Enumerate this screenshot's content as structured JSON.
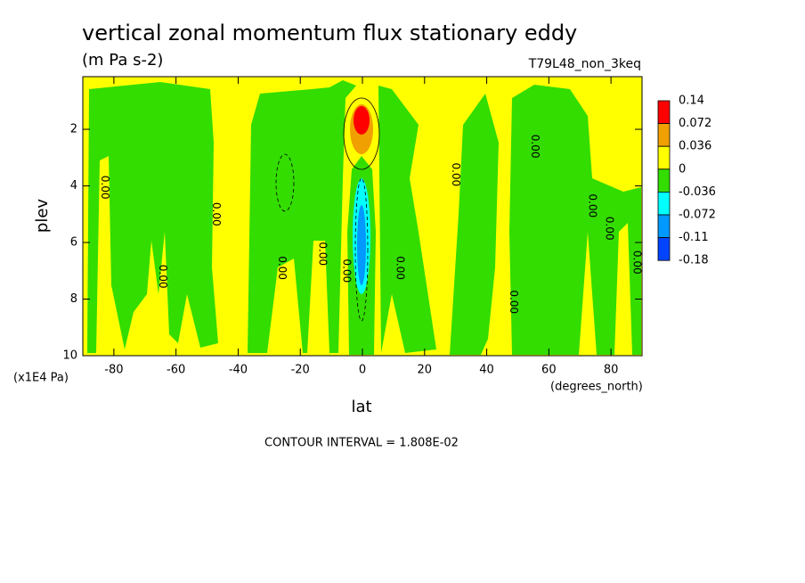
{
  "chart_data": {
    "type": "contour",
    "title": "vertical zonal momentum flux stationary eddy",
    "subtitle": "(m Pa s-2)",
    "annotation": "T79L48_non_3keq",
    "xlabel": "lat",
    "ylabel": "plev",
    "y_unit": "(x1E4 Pa)",
    "x_unit": "(degrees_north)",
    "note": "CONTOUR INTERVAL = 1.808E-02",
    "xlim": [
      -90,
      90
    ],
    "ylim": [
      10,
      0.14
    ],
    "xticks": [
      -80,
      -60,
      -40,
      -20,
      0,
      20,
      40,
      60,
      80
    ],
    "yticks": [
      2,
      4,
      6,
      8,
      10
    ],
    "colorbar": {
      "levels": [
        0.14,
        0.072,
        0.036,
        0,
        -0.036,
        -0.072,
        -0.11,
        -0.18
      ],
      "colors": [
        "#ff0000",
        "#f0a000",
        "#ffff00",
        "#33dd00",
        "#00ffff",
        "#0099ff",
        "#0044ff"
      ]
    },
    "contour_labels": [
      {
        "text": "0.00",
        "lat": -83,
        "plev": 4.05
      },
      {
        "text": "0.00",
        "lat": -64.3,
        "plev": 7.2
      },
      {
        "text": "0.00",
        "lat": -47.1,
        "plev": 5.0
      },
      {
        "text": "0.00",
        "lat": -26,
        "plev": 6.9
      },
      {
        "text": "0.00",
        "lat": -12.9,
        "plev": 6.4
      },
      {
        "text": "0.00",
        "lat": -5.1,
        "plev": 7.0
      },
      {
        "text": "0.00",
        "lat": 12,
        "plev": 6.9
      },
      {
        "text": "0.00",
        "lat": 30,
        "plev": 3.6
      },
      {
        "text": "0.00",
        "lat": 48.6,
        "plev": 8.1
      },
      {
        "text": "0.00",
        "lat": 55.4,
        "plev": 2.6
      },
      {
        "text": "0.00",
        "lat": 74,
        "plev": 4.7
      },
      {
        "text": "0.00",
        "lat": 79.4,
        "plev": 5.5
      },
      {
        "text": "0.00",
        "lat": 88.3,
        "plev": 6.7
      }
    ]
  }
}
